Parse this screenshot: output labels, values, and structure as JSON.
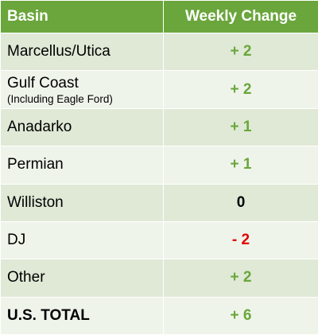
{
  "table": {
    "header": [
      "Basin",
      "Weekly Change"
    ],
    "rows": [
      {
        "basin": "Marcellus/Utica",
        "change": "+ 2",
        "color": "#6aa63c"
      },
      {
        "basin": "Gulf Coast",
        "note": "(Including Eagle Ford)",
        "change": "+ 2",
        "color": "#6aa63c"
      },
      {
        "basin": "Anadarko",
        "change": "+ 1",
        "color": "#6aa63c"
      },
      {
        "basin": "Permian",
        "change": "+ 1",
        "color": "#6aa63c"
      },
      {
        "basin": "Williston",
        "change": "0",
        "color": "#000000"
      },
      {
        "basin": "DJ",
        "change": "- 2",
        "color": "#e00000"
      },
      {
        "basin": "Other",
        "change": "+ 2",
        "color": "#6aa63c"
      },
      {
        "basin": "U.S. TOTAL",
        "change": "+ 6",
        "color": "#6aa63c",
        "bold": true
      }
    ]
  }
}
